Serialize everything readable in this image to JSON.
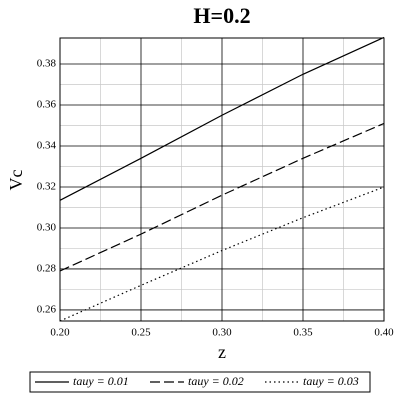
{
  "chart_data": {
    "type": "line",
    "title": "H=0.2",
    "x_label": "z",
    "y_label": "Vc",
    "x": [
      0.2,
      0.25,
      0.3,
      0.35,
      0.4
    ],
    "series": [
      {
        "name": "tauy = 0.01",
        "color": "#000000",
        "dash": "solid",
        "values": [
          0.3135,
          0.334,
          0.355,
          0.375,
          0.393
        ]
      },
      {
        "name": "tauy = 0.02",
        "color": "#000000",
        "dash": "dashed",
        "values": [
          0.279,
          0.297,
          0.316,
          0.334,
          0.351
        ]
      },
      {
        "name": "tauy = 0.03",
        "color": "#000000",
        "dash": "dotted",
        "values": [
          0.2546,
          0.272,
          0.289,
          0.305,
          0.32
        ]
      }
    ],
    "xlim": [
      0.2,
      0.4
    ],
    "xticks": [
      {
        "value": 0.2,
        "label": "0.20"
      },
      0.25,
      {
        "value": 0.3,
        "label": "0.30"
      },
      0.35,
      {
        "value": 0.4,
        "label": "0.40"
      }
    ],
    "ylim": [
      0.2546,
      0.3927
    ],
    "yticks": [
      0.26,
      0.28,
      {
        "value": 0.3,
        "label": "0.30"
      },
      0.32,
      0.34,
      0.36,
      0.38
    ],
    "grid": true,
    "legend": "bottom"
  }
}
